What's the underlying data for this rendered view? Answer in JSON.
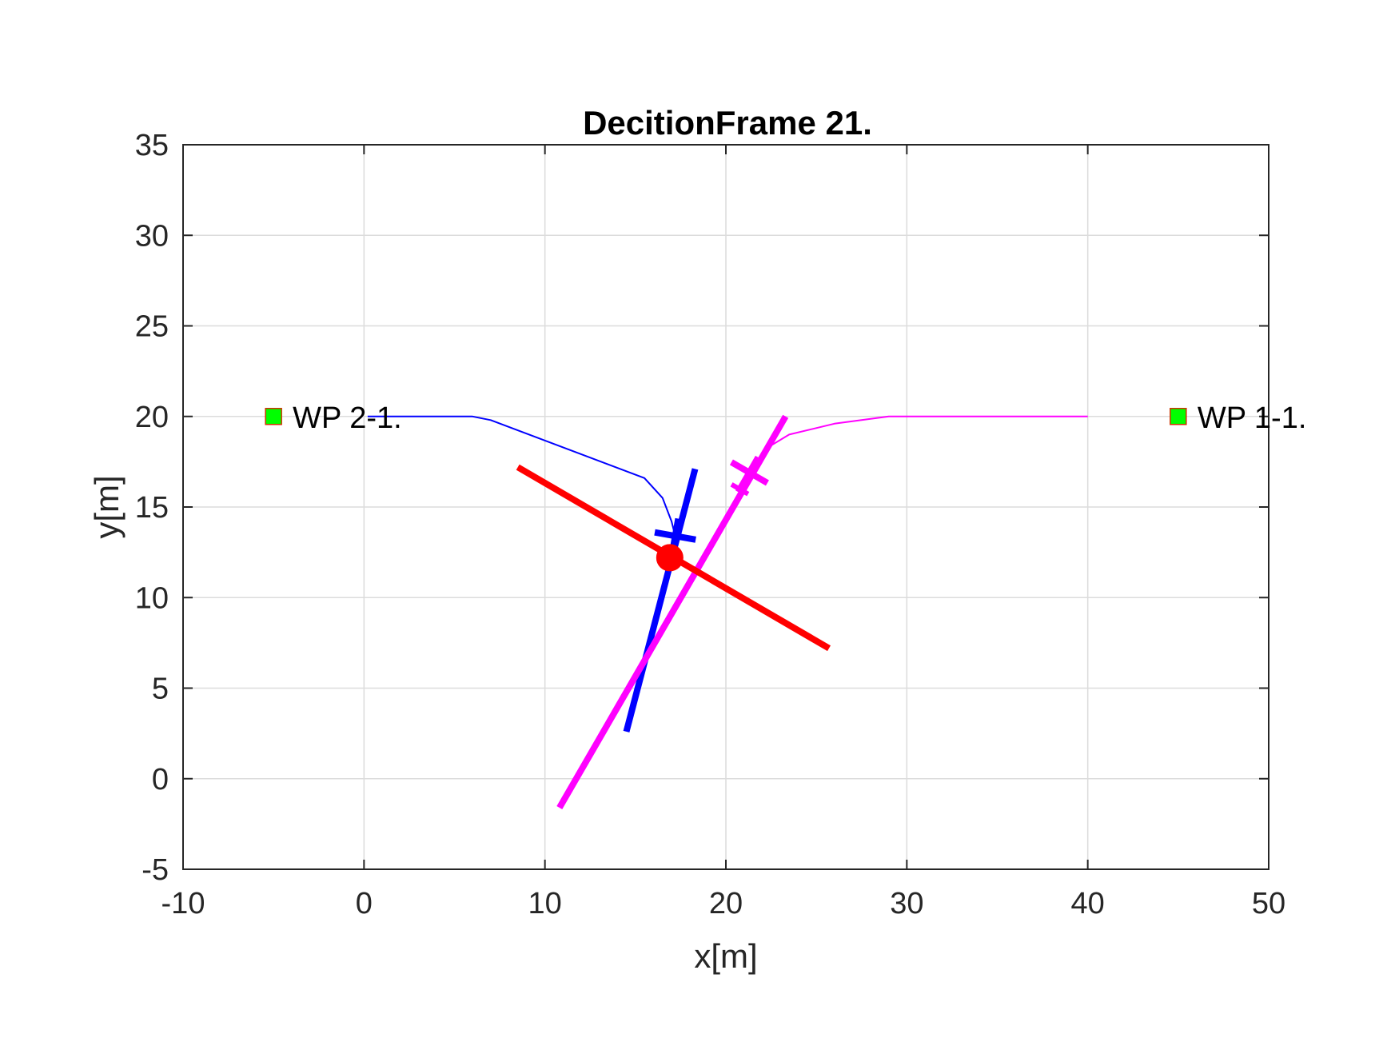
{
  "chart_data": {
    "type": "line",
    "title": "DecitionFrame 21.",
    "xlabel": "x[m]",
    "ylabel": "y[m]",
    "xlim": [
      -10,
      50
    ],
    "ylim": [
      -5,
      35
    ],
    "xticks": [
      -10,
      0,
      10,
      20,
      30,
      40,
      50
    ],
    "yticks": [
      -5,
      0,
      5,
      10,
      15,
      20,
      25,
      30,
      35
    ],
    "xtick_labels": [
      "-10",
      "0",
      "10",
      "20",
      "30",
      "40",
      "50"
    ],
    "ytick_labels": [
      "-5",
      "0",
      "5",
      "10",
      "15",
      "20",
      "25",
      "30",
      "35"
    ],
    "grid": true,
    "colors": {
      "grid": "#dcdcdc",
      "axis": "#262626",
      "blue": "#0000ff",
      "magenta": "#ff00ff",
      "red": "#ff0000",
      "waypoint_fill": "#00ff00",
      "waypoint_edge": "#cc3300"
    },
    "series": [
      {
        "color": "#0000ff",
        "style": "thin-line",
        "x": [
          0.2,
          6,
          7,
          15.5,
          16.5,
          17.0,
          17.2
        ],
        "y": [
          20,
          20,
          19.8,
          16.6,
          15.5,
          14.2,
          13.4
        ]
      },
      {
        "color": "#ff00ff",
        "style": "thin-line",
        "x": [
          21.6,
          22.0,
          22.5,
          23.5,
          26,
          29,
          40
        ],
        "y": [
          16.9,
          17.7,
          18.4,
          19.0,
          19.6,
          20,
          20
        ]
      },
      {
        "color": "#0000ff",
        "style": "thick-line",
        "x": [
          14.5,
          18.3
        ],
        "y": [
          2.6,
          17.1
        ]
      },
      {
        "color": "#ff00ff",
        "style": "thick-line",
        "x": [
          10.8,
          23.3
        ],
        "y": [
          -1.6,
          20.0
        ]
      },
      {
        "color": "#ff0000",
        "style": "thick-line",
        "x": [
          8.5,
          25.7
        ],
        "y": [
          17.2,
          7.2
        ]
      }
    ],
    "vehicles": [
      {
        "color": "#0000ff",
        "x": 17.2,
        "y": 13.4,
        "heading_deg": 80
      },
      {
        "color": "#ff00ff",
        "x": 21.3,
        "y": 16.9,
        "heading_deg": 60
      }
    ],
    "points": [
      {
        "color": "#ff0000",
        "x": 16.9,
        "y": 12.2,
        "marker": "circle"
      }
    ],
    "waypoints": [
      {
        "label": "WP 2-1.",
        "x": -5,
        "y": 20
      },
      {
        "label": "WP 1-1.",
        "x": 45,
        "y": 20
      }
    ]
  }
}
